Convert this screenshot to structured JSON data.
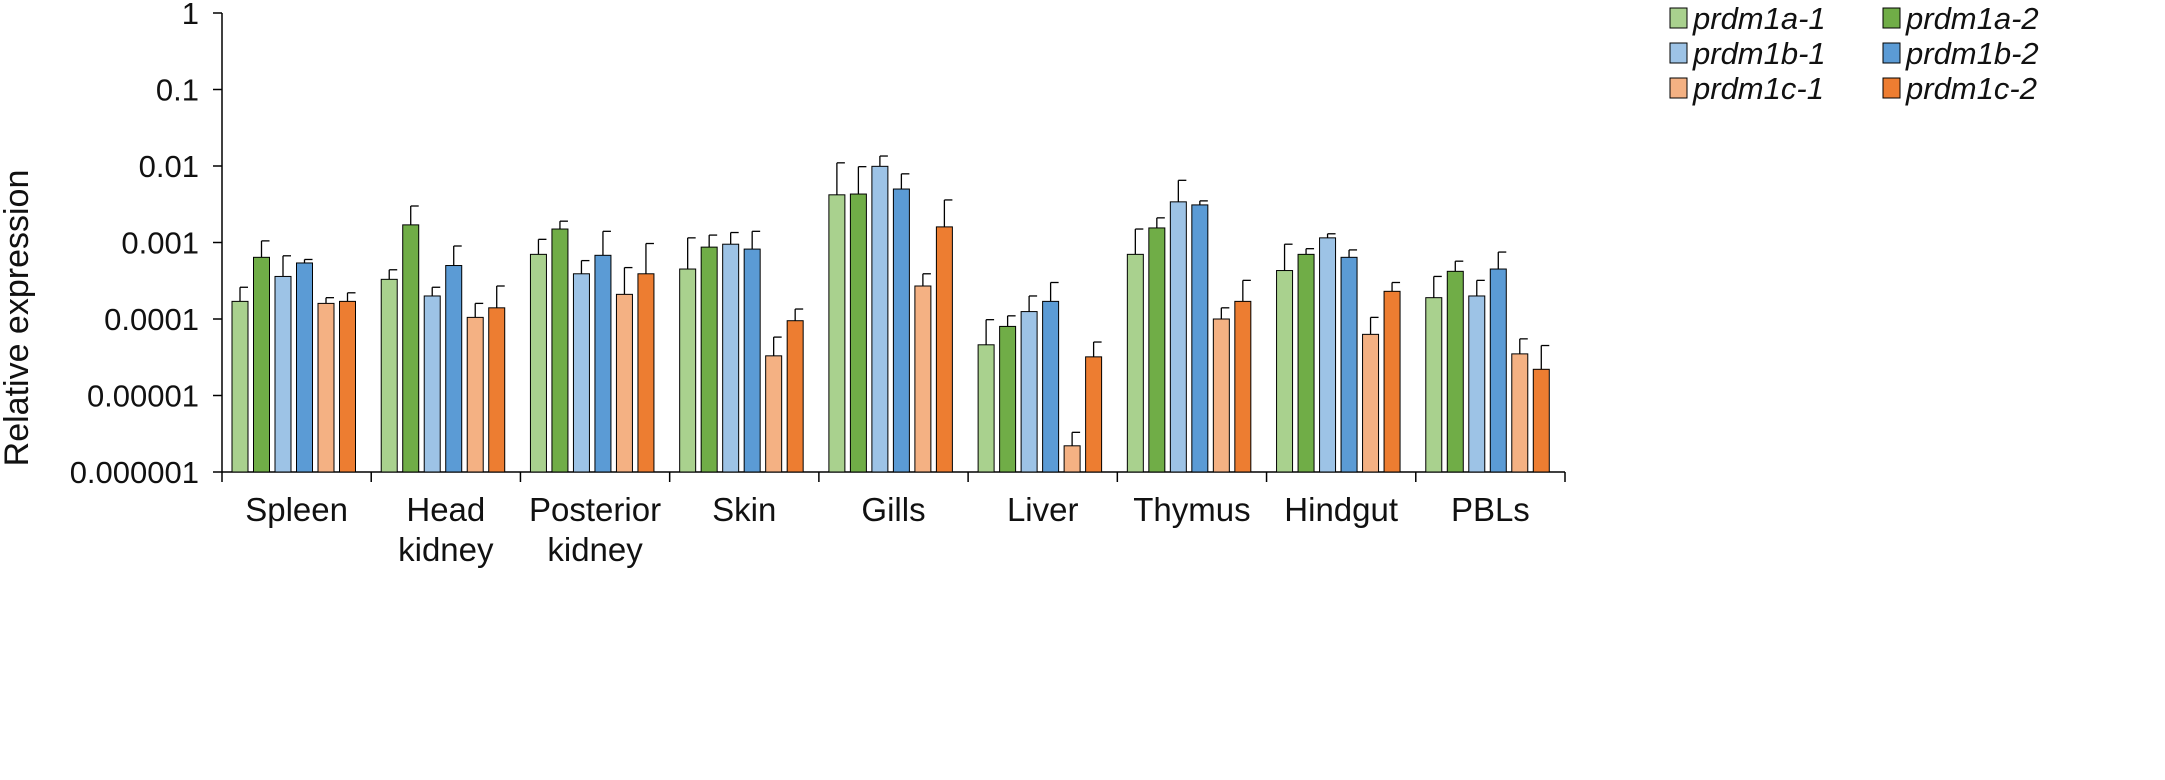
{
  "chart_data": {
    "type": "bar",
    "scale": "log",
    "ylabel": "Relative expression",
    "xlabel": "",
    "ylim": [
      1e-06,
      1
    ],
    "yticks": [
      {
        "value": 1,
        "label": "1"
      },
      {
        "value": 0.1,
        "label": "0.1"
      },
      {
        "value": 0.01,
        "label": "0.01"
      },
      {
        "value": 0.001,
        "label": "0.001"
      },
      {
        "value": 0.0001,
        "label": "0.0001"
      },
      {
        "value": 1e-05,
        "label": "0.00001"
      },
      {
        "value": 1e-06,
        "label": "0.000001"
      }
    ],
    "categories": [
      [
        "Spleen"
      ],
      [
        "Head",
        "kidney"
      ],
      [
        "Posterior",
        "kidney"
      ],
      [
        "Skin"
      ],
      [
        "Gills"
      ],
      [
        "Liver"
      ],
      [
        "Thymus"
      ],
      [
        "Hindgut"
      ],
      [
        "PBLs"
      ]
    ],
    "series": [
      {
        "name": "prdm1a-1",
        "color": "#a9d18e",
        "values": [
          0.00017,
          0.00033,
          0.0007,
          0.00045,
          0.0042,
          4.6e-05,
          0.0007,
          0.00043,
          0.00019
        ],
        "errors": [
          0.00026,
          0.00044,
          0.0011,
          0.00115,
          0.011,
          9.8e-05,
          0.0015,
          0.00095,
          0.00036
        ]
      },
      {
        "name": "prdm1a-2",
        "color": "#70ad47",
        "values": [
          0.00064,
          0.0017,
          0.0015,
          0.00087,
          0.0043,
          8e-05,
          0.00155,
          0.0007,
          0.00042
        ],
        "errors": [
          0.00105,
          0.003,
          0.0019,
          0.00125,
          0.0098,
          0.00011,
          0.0021,
          0.00083,
          0.00057
        ]
      },
      {
        "name": "prdm1b-1",
        "color": "#9dc3e6",
        "values": [
          0.00036,
          0.0002,
          0.00039,
          0.00095,
          0.0099,
          0.000125,
          0.0034,
          0.00115,
          0.0002
        ],
        "errors": [
          0.00067,
          0.00026,
          0.00058,
          0.00135,
          0.0135,
          0.0002,
          0.0065,
          0.0013,
          0.00032
        ]
      },
      {
        "name": "prdm1b-2",
        "color": "#5b9bd5",
        "values": [
          0.00054,
          0.0005,
          0.00068,
          0.00082,
          0.005,
          0.00017,
          0.0031,
          0.00064,
          0.00045
        ],
        "errors": [
          0.0006,
          0.0009,
          0.0014,
          0.0014,
          0.0079,
          0.0003,
          0.0035,
          0.0008,
          0.00075
        ]
      },
      {
        "name": "prdm1c-1",
        "color": "#f4b183",
        "values": [
          0.00016,
          0.000105,
          0.00021,
          3.3e-05,
          0.00027,
          2.2e-06,
          0.0001,
          6.3e-05,
          3.5e-05
        ],
        "errors": [
          0.00019,
          0.00016,
          0.00047,
          5.8e-05,
          0.00039,
          3.3e-06,
          0.00014,
          0.000105,
          5.5e-05
        ]
      },
      {
        "name": "prdm1c-2",
        "color": "#ed7d31",
        "values": [
          0.00017,
          0.00014,
          0.00039,
          9.5e-05,
          0.0016,
          3.2e-05,
          0.00017,
          0.00023,
          2.2e-05
        ],
        "errors": [
          0.00022,
          0.00027,
          0.00097,
          0.000135,
          0.0036,
          5e-05,
          0.00032,
          0.0003,
          4.5e-05
        ]
      }
    ],
    "legend_position": "top-right",
    "grid": false
  }
}
